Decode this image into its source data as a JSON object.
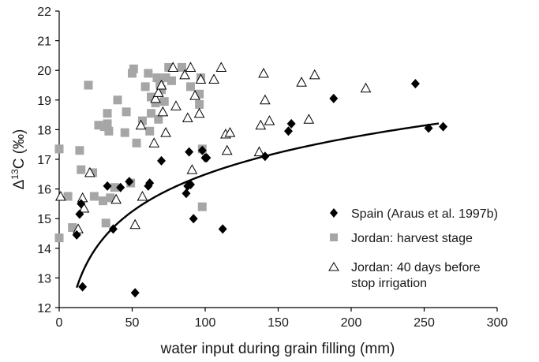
{
  "chart_data": {
    "type": "scatter",
    "xlabel": "water input during grain filling (mm)",
    "ylabel_main": "Δ",
    "ylabel_sup": "13",
    "ylabel_rest": "C (‰)",
    "xlim": [
      0,
      300
    ],
    "ylim": [
      12,
      22
    ],
    "x_ticks": [
      "0",
      "50",
      "100",
      "150",
      "200",
      "250",
      "300"
    ],
    "y_ticks": [
      "12",
      "13",
      "14",
      "15",
      "16",
      "17",
      "18",
      "19",
      "20",
      "21",
      "22"
    ],
    "grid": false,
    "legend_position": "bottom-right",
    "series": [
      {
        "name": "Spain (Araus et al. 1997b)",
        "marker": "diamond",
        "color": "#000000",
        "points": [
          [
            12,
            14.45
          ],
          [
            14,
            15.15
          ],
          [
            15,
            15.5
          ],
          [
            16,
            12.7
          ],
          [
            33,
            16.1
          ],
          [
            37,
            14.65
          ],
          [
            42,
            16.05
          ],
          [
            48,
            16.25
          ],
          [
            52,
            12.5
          ],
          [
            61,
            16.1
          ],
          [
            62,
            16.2
          ],
          [
            70,
            16.95
          ],
          [
            87,
            15.85
          ],
          [
            88,
            16.1
          ],
          [
            89,
            17.25
          ],
          [
            90,
            16.15
          ],
          [
            92,
            15.0
          ],
          [
            98,
            17.3
          ],
          [
            100,
            17.05
          ],
          [
            101,
            17.05
          ],
          [
            112,
            14.65
          ],
          [
            141,
            17.1
          ],
          [
            157,
            17.95
          ],
          [
            159,
            18.2
          ],
          [
            188,
            19.05
          ],
          [
            244,
            19.55
          ],
          [
            253,
            18.05
          ],
          [
            263,
            18.1
          ]
        ]
      },
      {
        "name": "Jordan: harvest stage",
        "marker": "square",
        "color": "#a6a6a6",
        "points": [
          [
            0,
            17.35
          ],
          [
            0,
            14.35
          ],
          [
            6,
            15.75
          ],
          [
            9,
            14.7
          ],
          [
            14,
            17.3
          ],
          [
            15,
            16.65
          ],
          [
            20,
            19.5
          ],
          [
            23,
            16.55
          ],
          [
            24,
            15.75
          ],
          [
            27,
            18.15
          ],
          [
            30,
            15.6
          ],
          [
            31,
            18.1
          ],
          [
            32,
            14.85
          ],
          [
            33,
            18.55
          ],
          [
            33,
            18.2
          ],
          [
            34,
            17.95
          ],
          [
            35,
            15.7
          ],
          [
            38,
            16.05
          ],
          [
            40,
            19.0
          ],
          [
            45,
            17.9
          ],
          [
            46,
            18.6
          ],
          [
            49,
            16.2
          ],
          [
            50,
            19.9
          ],
          [
            51,
            20.05
          ],
          [
            53,
            17.55
          ],
          [
            57,
            18.3
          ],
          [
            59,
            19.45
          ],
          [
            61,
            19.9
          ],
          [
            62,
            17.95
          ],
          [
            63,
            18.55
          ],
          [
            63,
            19.1
          ],
          [
            66,
            18.9
          ],
          [
            67,
            19.75
          ],
          [
            68,
            18.35
          ],
          [
            69,
            19.55
          ],
          [
            70,
            19.35
          ],
          [
            72,
            18.95
          ],
          [
            73,
            19.75
          ],
          [
            75,
            20.1
          ],
          [
            77,
            19.65
          ],
          [
            84,
            20.1
          ],
          [
            90,
            19.45
          ],
          [
            96,
            19.2
          ],
          [
            96,
            18.85
          ],
          [
            97,
            19.75
          ],
          [
            98,
            17.35
          ],
          [
            98,
            15.4
          ]
        ]
      },
      {
        "name": "Jordan: 40 days before stop irrigation",
        "marker": "triangle",
        "color": "#000000",
        "points": [
          [
            1,
            15.75
          ],
          [
            13,
            14.65
          ],
          [
            16,
            15.7
          ],
          [
            17,
            15.35
          ],
          [
            21,
            16.55
          ],
          [
            39,
            15.65
          ],
          [
            52,
            14.8
          ],
          [
            56,
            18.15
          ],
          [
            57,
            15.75
          ],
          [
            65,
            17.55
          ],
          [
            66,
            19.05
          ],
          [
            68,
            19.25
          ],
          [
            70,
            19.5
          ],
          [
            71,
            18.6
          ],
          [
            73,
            17.9
          ],
          [
            78,
            20.1
          ],
          [
            80,
            18.8
          ],
          [
            86,
            19.85
          ],
          [
            88,
            18.4
          ],
          [
            90,
            20.1
          ],
          [
            91,
            16.65
          ],
          [
            93,
            19.15
          ],
          [
            96,
            18.55
          ],
          [
            97,
            19.7
          ],
          [
            106,
            19.7
          ],
          [
            111,
            20.1
          ],
          [
            114,
            17.85
          ],
          [
            115,
            17.3
          ],
          [
            117,
            17.9
          ],
          [
            137,
            17.25
          ],
          [
            138,
            18.15
          ],
          [
            140,
            19.9
          ],
          [
            141,
            19.0
          ],
          [
            144,
            18.3
          ],
          [
            166,
            19.6
          ],
          [
            171,
            18.35
          ],
          [
            175,
            19.85
          ],
          [
            210,
            19.4
          ]
        ]
      }
    ],
    "fit_curve": {
      "form": "logarithmic",
      "a": 1.8,
      "b": 8.2,
      "x_range": [
        12,
        260
      ]
    }
  }
}
